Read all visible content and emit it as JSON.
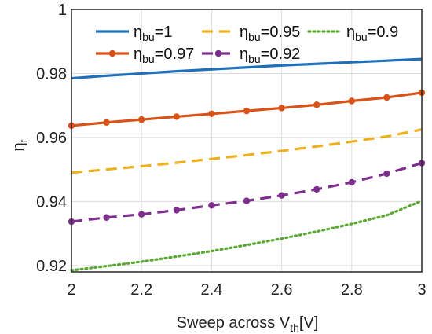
{
  "chart_data": {
    "type": "line",
    "xlabel": {
      "prefix": "Sweep across V",
      "sub": "th",
      "suffix": "[V]"
    },
    "ylabel": {
      "base": "η",
      "sub": "t"
    },
    "xlim": [
      2,
      3
    ],
    "ylim": [
      0.918,
      1.0
    ],
    "xticks": [
      2,
      2.2,
      2.4,
      2.6,
      2.8,
      3
    ],
    "xtick_labels": [
      "2",
      "2.2",
      "2.4",
      "2.6",
      "2.8",
      "3"
    ],
    "yticks": [
      0.92,
      0.94,
      0.96,
      0.98,
      1.0
    ],
    "ytick_labels": [
      "0.92",
      "0.94",
      "0.96",
      "0.98",
      "1"
    ],
    "grid": true,
    "legend_position": "top",
    "x": [
      2.0,
      2.1,
      2.2,
      2.3,
      2.4,
      2.5,
      2.6,
      2.7,
      2.8,
      2.9,
      3.0
    ],
    "series": [
      {
        "name": {
          "base": "η",
          "sub": "bu",
          "suffix": "=1"
        },
        "color": "#1f6fba",
        "style": "solid",
        "marker": false,
        "values": [
          0.9785,
          0.9793,
          0.98,
          0.9807,
          0.9813,
          0.9819,
          0.9825,
          0.983,
          0.9835,
          0.984,
          0.9845
        ]
      },
      {
        "name": {
          "base": "η",
          "sub": "bu",
          "suffix": "=0.95"
        },
        "color": "#edb120",
        "style": "dashed",
        "marker": false,
        "values": [
          0.949,
          0.95,
          0.951,
          0.9521,
          0.9533,
          0.9545,
          0.9558,
          0.9572,
          0.9587,
          0.9603,
          0.9625
        ]
      },
      {
        "name": {
          "base": "η",
          "sub": "bu",
          "suffix": "=0.9"
        },
        "color": "#5aa832",
        "style": "dotted",
        "marker": false,
        "values": [
          0.9185,
          0.9198,
          0.9212,
          0.9228,
          0.9245,
          0.9264,
          0.9284,
          0.9306,
          0.933,
          0.9357,
          0.9402
        ]
      },
      {
        "name": {
          "base": "η",
          "sub": "bu",
          "suffix": "=0.97"
        },
        "color": "#d95319",
        "style": "solid",
        "marker": true,
        "values": [
          0.9637,
          0.9647,
          0.9656,
          0.9665,
          0.9674,
          0.9683,
          0.9692,
          0.9702,
          0.9714,
          0.9725,
          0.974
        ]
      },
      {
        "name": {
          "base": "η",
          "sub": "bu",
          "suffix": "=0.92"
        },
        "color": "#7e2f8e",
        "style": "dashed",
        "marker": true,
        "values": [
          0.9337,
          0.935,
          0.936,
          0.9373,
          0.9388,
          0.9402,
          0.9419,
          0.9438,
          0.946,
          0.9487,
          0.952
        ]
      }
    ]
  }
}
